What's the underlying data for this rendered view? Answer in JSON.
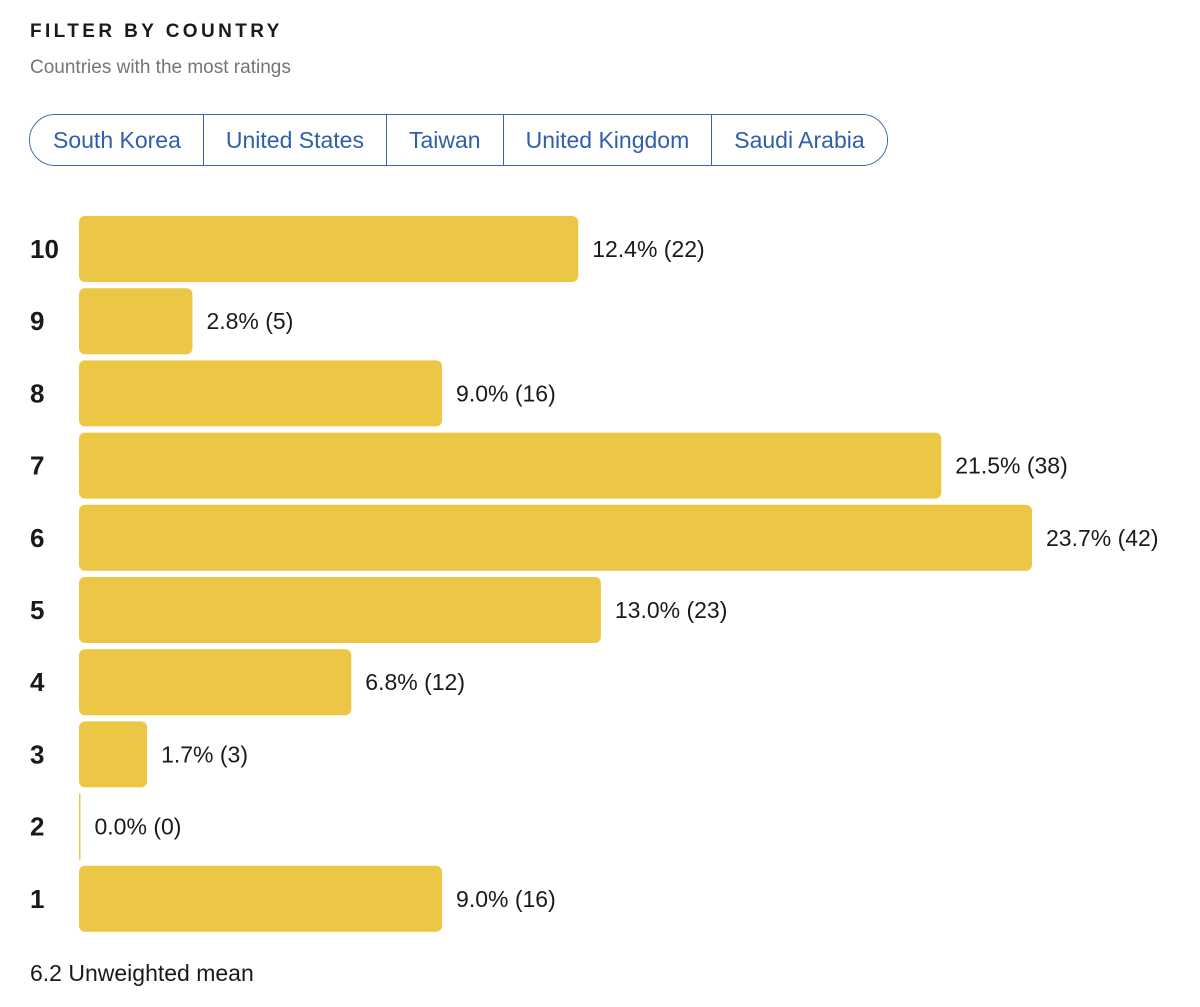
{
  "filter": {
    "heading": "FILTER BY COUNTRY",
    "subheading": "Countries with the most ratings",
    "countries": [
      "South Korea",
      "United States",
      "Taiwan",
      "United Kingdom",
      "Saudi Arabia"
    ]
  },
  "colors": {
    "bar": "#ecc746",
    "accent": "#2f5fa8",
    "heading": "#1a1a1a",
    "subtext": "#757575"
  },
  "chart_data": {
    "type": "bar",
    "orientation": "horizontal",
    "categories": [
      "10",
      "9",
      "8",
      "7",
      "6",
      "5",
      "4",
      "3",
      "2",
      "1"
    ],
    "values": [
      22,
      5,
      16,
      38,
      42,
      23,
      12,
      3,
      0,
      16
    ],
    "percents": [
      12.4,
      2.8,
      9.0,
      21.5,
      23.7,
      13.0,
      6.8,
      1.7,
      0.0,
      9.0
    ],
    "labels": [
      "12.4% (22)",
      "2.8% (5)",
      "9.0% (16)",
      "21.5% (38)",
      "23.7% (42)",
      "13.0% (23)",
      "6.8% (12)",
      "1.7% (3)",
      "0.0% (0)",
      "9.0% (16)"
    ],
    "title": "",
    "xlabel": "",
    "ylabel": "",
    "grid": false,
    "legend": "none"
  },
  "summary": {
    "mean_value": "6.2",
    "mean_label": "Unweighted mean"
  }
}
